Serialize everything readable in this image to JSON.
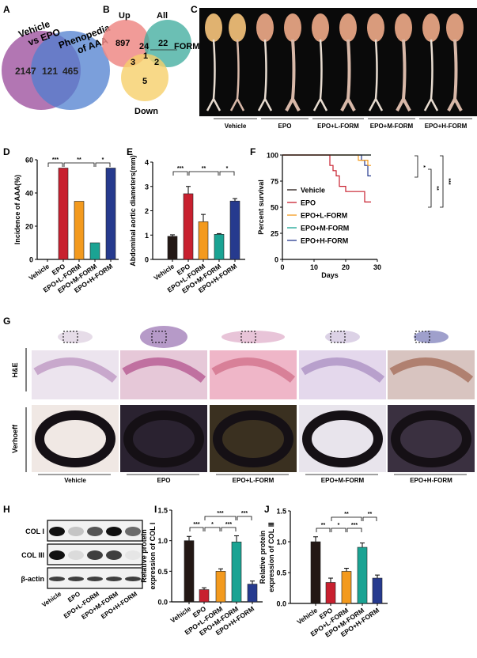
{
  "panel_letters": [
    "A",
    "B",
    "C",
    "D",
    "E",
    "F",
    "G",
    "H",
    "I",
    "J"
  ],
  "colors": {
    "vehicle": "#231815",
    "epo": "#c8202f",
    "l_form": "#f39a1e",
    "m_form": "#1aa393",
    "h_form": "#263a8e"
  },
  "groups": [
    "Vehicle",
    "EPO",
    "EPO+L-FORM",
    "EPO+M-FORM",
    "EPO+H-FORM"
  ],
  "venn_a": {
    "left_label": [
      "Vehicle",
      "vs  EPO"
    ],
    "right_label": [
      "Phenopedia",
      "of AAA"
    ],
    "left_only": "2147",
    "overlap": "121",
    "right_only": "465"
  },
  "venn_b": {
    "up_label": "Up",
    "all_label": "All",
    "down_label": "Down",
    "form_label": "FORM",
    "up_only": "897",
    "up_all": "24",
    "all_only": "22",
    "up_down": "3",
    "center": "1",
    "all_down": "2",
    "down_only": "5"
  },
  "histology": {
    "row1_label": "H&E",
    "row2_label": "Verhoeff"
  },
  "western": {
    "bands": [
      "COL I",
      "COL III",
      "β-actin"
    ]
  },
  "chart_data": [
    {
      "id": "D",
      "type": "bar",
      "ylabel": "Incidence of AAA(%)",
      "ylim": [
        0,
        60
      ],
      "yticks": [
        0,
        20,
        40,
        60
      ],
      "categories": [
        "Vehicle",
        "EPO",
        "EPO+L-FORM",
        "EPO+M-FORM",
        "EPO+H-FORM"
      ],
      "values": [
        0,
        55,
        35,
        10,
        55
      ],
      "significance": [
        {
          "from": 0,
          "to": 1,
          "label": "***"
        },
        {
          "from": 1,
          "to": 3,
          "label": "**"
        },
        {
          "from": 3,
          "to": 4,
          "label": "*"
        }
      ]
    },
    {
      "id": "E",
      "type": "bar",
      "ylabel": "Abdominal aortic diameters(mm)",
      "ylim": [
        0,
        4
      ],
      "yticks": [
        0,
        1,
        2,
        3,
        4
      ],
      "categories": [
        "Vehicle",
        "EPO",
        "EPO+L-FORM",
        "EPO+M-FORM",
        "EPO+H-FORM"
      ],
      "values": [
        0.95,
        2.7,
        1.55,
        1.03,
        2.4
      ],
      "errors": [
        0.06,
        0.3,
        0.3,
        0.03,
        0.1
      ],
      "significance": [
        {
          "from": 0,
          "to": 1,
          "label": "***"
        },
        {
          "from": 1,
          "to": 3,
          "label": "**"
        },
        {
          "from": 3,
          "to": 4,
          "label": "*"
        }
      ]
    },
    {
      "id": "F",
      "type": "line",
      "xlabel": "Days",
      "ylabel": "Percent survival",
      "xlim": [
        0,
        30
      ],
      "ylim": [
        0,
        100
      ],
      "xticks": [
        0,
        10,
        20,
        30
      ],
      "yticks": [
        0,
        25,
        50,
        75,
        100
      ],
      "legend": "center-left",
      "series": [
        {
          "name": "Vehicle",
          "points": [
            [
              0,
              100
            ],
            [
              28,
              100
            ]
          ]
        },
        {
          "name": "EPO",
          "points": [
            [
              0,
              100
            ],
            [
              15,
              100
            ],
            [
              15,
              90
            ],
            [
              16,
              90
            ],
            [
              16,
              85
            ],
            [
              17,
              85
            ],
            [
              17,
              80
            ],
            [
              18,
              80
            ],
            [
              18,
              70
            ],
            [
              20,
              70
            ],
            [
              20,
              65
            ],
            [
              26,
              65
            ],
            [
              26,
              55
            ],
            [
              28,
              55
            ]
          ]
        },
        {
          "name": "EPO+L-FORM",
          "points": [
            [
              0,
              100
            ],
            [
              24,
              100
            ],
            [
              24,
              95
            ],
            [
              27,
              95
            ],
            [
              27,
              90
            ],
            [
              28,
              90
            ]
          ]
        },
        {
          "name": "EPO+M-FORM",
          "points": [
            [
              0,
              100
            ],
            [
              28,
              100
            ]
          ]
        },
        {
          "name": "EPO+H-FORM",
          "points": [
            [
              0,
              100
            ],
            [
              25,
              100
            ],
            [
              25,
              95
            ],
            [
              26,
              95
            ],
            [
              26,
              90
            ],
            [
              27,
              90
            ],
            [
              27,
              80
            ],
            [
              28,
              80
            ]
          ]
        }
      ],
      "significance": [
        {
          "label": "*"
        },
        {
          "label": "**"
        },
        {
          "label": "***"
        }
      ]
    },
    {
      "id": "I",
      "type": "bar",
      "ylabel": [
        "Relative protein",
        "expression of COL I"
      ],
      "ylim": [
        0,
        1.5
      ],
      "yticks": [
        "0.0",
        "0.5",
        "1.0",
        "1.5"
      ],
      "categories": [
        "Vehicle",
        "EPO",
        "EPO+L-FORM",
        "EPO+M-FORM",
        "EPO+H-FORM"
      ],
      "values": [
        1.0,
        0.2,
        0.5,
        0.98,
        0.29
      ],
      "errors": [
        0.07,
        0.03,
        0.04,
        0.1,
        0.05
      ],
      "significance": [
        {
          "from": 0,
          "to": 1,
          "label": "***"
        },
        {
          "from": 1,
          "to": 2,
          "label": "*"
        },
        {
          "from": 2,
          "to": 3,
          "label": "***"
        },
        {
          "from": 1,
          "to": 3,
          "label": "***",
          "level": 2
        },
        {
          "from": 3,
          "to": 4,
          "label": "***",
          "level": 2
        }
      ]
    },
    {
      "id": "J",
      "type": "bar",
      "ylabel": [
        "Relative protein",
        "expression of COL Ⅲ"
      ],
      "ylim": [
        0,
        1.5
      ],
      "yticks": [
        "0.0",
        "0.5",
        "1.0",
        "1.5"
      ],
      "categories": [
        "Vehicle",
        "EPO",
        "EPO+L-FORM",
        "EPO+M-FORM",
        "EPO+H-FORM"
      ],
      "values": [
        1.0,
        0.34,
        0.52,
        0.91,
        0.41
      ],
      "errors": [
        0.08,
        0.07,
        0.05,
        0.07,
        0.05
      ],
      "significance": [
        {
          "from": 0,
          "to": 1,
          "label": "**"
        },
        {
          "from": 1,
          "to": 2,
          "label": "*"
        },
        {
          "from": 2,
          "to": 3,
          "label": "***"
        },
        {
          "from": 1,
          "to": 3,
          "label": "**",
          "level": 2
        },
        {
          "from": 3,
          "to": 4,
          "label": "**",
          "level": 2
        }
      ]
    }
  ]
}
